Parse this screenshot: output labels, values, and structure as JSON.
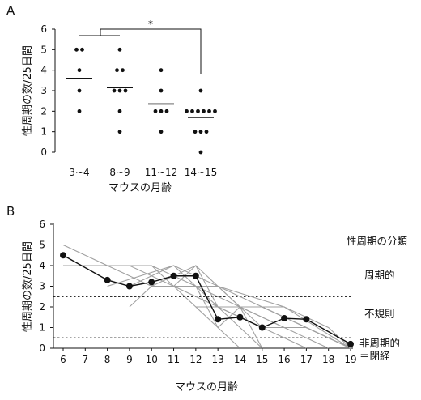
{
  "chart_data": [
    {
      "panel": "A",
      "type": "scatter",
      "ylabel": "性周期の数/25日間",
      "xlabel": "マウスの月齢",
      "ylim": [
        0,
        6
      ],
      "yticks": [
        "0",
        "1",
        "2",
        "3",
        "4",
        "5",
        "6"
      ],
      "categories": [
        "3~4",
        "8~9",
        "11~12",
        "14~15"
      ],
      "points": [
        [
          5,
          5,
          4,
          3,
          2
        ],
        [
          5,
          4,
          4,
          3,
          3,
          3,
          2,
          1
        ],
        [
          4,
          3,
          2,
          2,
          2,
          1
        ],
        [
          3,
          2,
          2,
          2,
          2,
          2,
          2,
          1,
          1,
          1,
          0
        ]
      ],
      "means": [
        3.6,
        3.15,
        2.35,
        1.7
      ],
      "significance": {
        "between": [
          "3~4",
          "14~15"
        ],
        "label": "*"
      }
    },
    {
      "panel": "B",
      "type": "line",
      "ylabel": "性周期の数/25日間",
      "xlabel": "マウスの月齢",
      "xlim": [
        6,
        19
      ],
      "ylim": [
        0,
        6
      ],
      "xticks": [
        "6",
        "7",
        "8",
        "9",
        "10",
        "11",
        "12",
        "13",
        "14",
        "15",
        "16",
        "17",
        "18",
        "19"
      ],
      "yticks": [
        "0",
        "1",
        "2",
        "3",
        "4",
        "5",
        "6"
      ],
      "mean_series": {
        "x": [
          6,
          8,
          9,
          10,
          11,
          12,
          13,
          14,
          15,
          16,
          17,
          19
        ],
        "y": [
          4.5,
          3.3,
          3.0,
          3.2,
          3.5,
          3.5,
          1.4,
          1.5,
          1.0,
          1.45,
          1.4,
          0.2
        ]
      },
      "individual_series": [
        {
          "x": [
            6,
            8,
            10,
            12,
            14,
            16
          ],
          "y": [
            5.0,
            4.0,
            3.0,
            3.0,
            2.0,
            1.0
          ]
        },
        {
          "x": [
            6,
            9,
            11,
            13,
            15
          ],
          "y": [
            4.0,
            4.0,
            3.0,
            2.0,
            1.0
          ]
        },
        {
          "x": [
            8,
            10,
            12,
            13,
            15,
            17
          ],
          "y": [
            4.0,
            4.0,
            3.0,
            2.0,
            1.0,
            0.0
          ]
        },
        {
          "x": [
            8,
            11,
            13,
            16,
            19
          ],
          "y": [
            3.0,
            4.0,
            3.0,
            2.0,
            0.0
          ]
        },
        {
          "x": [
            9,
            10,
            12,
            14,
            16,
            18
          ],
          "y": [
            2.0,
            3.0,
            4.0,
            2.0,
            1.0,
            0.0
          ]
        },
        {
          "x": [
            9,
            11,
            12,
            13,
            14,
            15
          ],
          "y": [
            3.0,
            4.0,
            3.0,
            1.0,
            2.0,
            0.0
          ]
        },
        {
          "x": [
            10,
            11,
            12,
            13,
            14,
            15
          ],
          "y": [
            4.0,
            3.0,
            4.0,
            2.0,
            1.0,
            0.0
          ]
        },
        {
          "x": [
            10,
            12,
            13,
            15,
            17
          ],
          "y": [
            3.0,
            3.0,
            3.0,
            2.0,
            1.0
          ]
        },
        {
          "x": [
            11,
            12,
            13,
            14
          ],
          "y": [
            3.0,
            2.0,
            1.0,
            0.0
          ]
        },
        {
          "x": [
            12,
            13,
            15,
            17,
            19
          ],
          "y": [
            2.0,
            2.0,
            1.0,
            1.0,
            0.0
          ]
        },
        {
          "x": [
            13,
            14,
            15,
            17,
            19
          ],
          "y": [
            3.0,
            2.0,
            1.0,
            1.0,
            0.0
          ]
        },
        {
          "x": [
            13,
            15,
            17,
            19
          ],
          "y": [
            2.0,
            2.0,
            1.0,
            0.0
          ]
        },
        {
          "x": [
            14,
            16,
            18,
            19
          ],
          "y": [
            2.0,
            2.0,
            1.0,
            0.0
          ]
        },
        {
          "x": [
            15,
            17,
            19
          ],
          "y": [
            2.0,
            1.0,
            0.0
          ]
        }
      ],
      "reference_lines": [
        2.5,
        0.5
      ],
      "annotations": {
        "title": "性周期の分類",
        "regular": "周期的",
        "irregular": "不規則",
        "acyclic_1": "非周期的",
        "acyclic_2": "＝閉経"
      }
    }
  ],
  "colors": {
    "ink": "#111111",
    "gray_lines": "#a0a0a0"
  }
}
